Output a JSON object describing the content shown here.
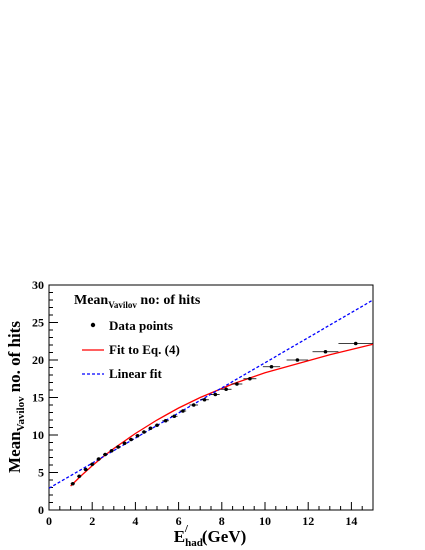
{
  "chart_data": {
    "type": "scatter",
    "title": "",
    "xlabel": "E",
    "xlabel_sub": "had",
    "xlabel_sup": "/",
    "xlabel_units": "(GeV)",
    "ylabel_main": "Mean",
    "ylabel_sub": "Vavilov",
    "ylabel_rest": "no. of hits",
    "xlim": [
      0,
      15
    ],
    "ylim": [
      0,
      30
    ],
    "x_ticks": [
      0,
      2,
      4,
      6,
      8,
      10,
      12,
      14
    ],
    "y_ticks": [
      0,
      5,
      10,
      15,
      20,
      25,
      30
    ],
    "grid": false,
    "legend": {
      "title_main": "Mean",
      "title_sub": "Vavilov",
      "title_rest": " no: of hits",
      "placement": "top-left",
      "entries": [
        "Data points",
        "Fit to Eq. (4)",
        "Linear fit"
      ]
    },
    "series": [
      {
        "name": "Data points",
        "kind": "points",
        "color": "#000000",
        "x": [
          1.1,
          1.4,
          1.7,
          2.0,
          2.3,
          2.6,
          2.9,
          3.2,
          3.5,
          3.8,
          4.1,
          4.4,
          4.7,
          5.0,
          5.4,
          5.8,
          6.2,
          6.7,
          7.2,
          7.7,
          8.2,
          8.7,
          9.3,
          10.3,
          11.5,
          12.8,
          14.2
        ],
        "y": [
          3.5,
          4.5,
          5.4,
          6.1,
          6.8,
          7.4,
          7.9,
          8.4,
          8.9,
          9.4,
          9.9,
          10.4,
          10.9,
          11.3,
          11.9,
          12.5,
          13.2,
          14.0,
          14.7,
          15.4,
          16.1,
          16.8,
          17.5,
          19.1,
          20.0,
          21.1,
          22.2
        ],
        "x_err": [
          0.1,
          0.1,
          0.1,
          0.1,
          0.1,
          0.1,
          0.1,
          0.1,
          0.1,
          0.1,
          0.1,
          0.1,
          0.1,
          0.1,
          0.15,
          0.15,
          0.15,
          0.2,
          0.2,
          0.2,
          0.25,
          0.25,
          0.3,
          0.4,
          0.5,
          0.6,
          0.8
        ]
      },
      {
        "name": "Fit to Eq. (4)",
        "kind": "line",
        "color": "#ff0000",
        "x": [
          1.0,
          1.5,
          2.0,
          2.5,
          3.0,
          3.5,
          4.0,
          4.5,
          5.0,
          5.5,
          6.0,
          6.5,
          7.0,
          7.5,
          8.0,
          8.5,
          9.0,
          9.5,
          10.0,
          11.0,
          12.0,
          13.0,
          14.0,
          15.0
        ],
        "y": [
          3.2,
          4.6,
          5.9,
          7.1,
          8.2,
          9.2,
          10.2,
          11.1,
          12.0,
          12.8,
          13.6,
          14.3,
          15.0,
          15.6,
          16.2,
          16.8,
          17.3,
          17.8,
          18.3,
          19.1,
          19.9,
          20.7,
          21.4,
          22.1
        ]
      },
      {
        "name": "Linear fit",
        "kind": "line",
        "dashed": true,
        "color": "#0000ff",
        "x": [
          0,
          15
        ],
        "y": [
          2.9,
          28.0
        ]
      }
    ]
  }
}
